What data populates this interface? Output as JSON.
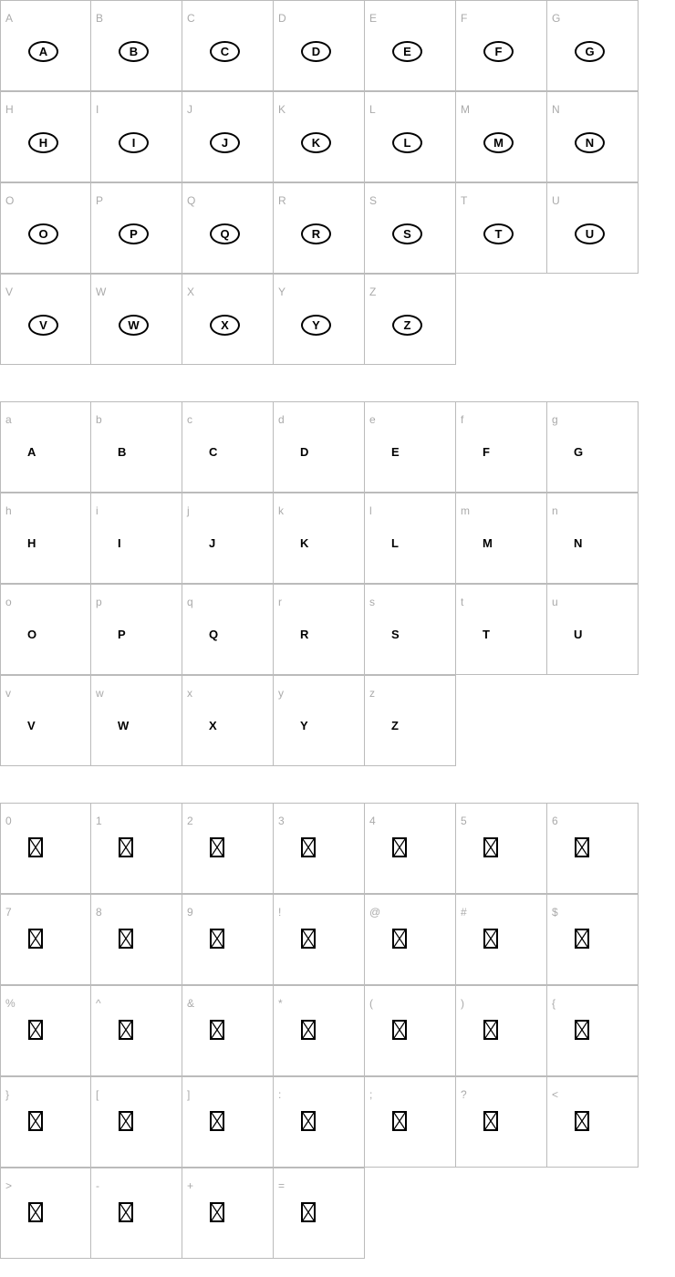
{
  "sections": [
    {
      "style": "oval",
      "cells": [
        {
          "label": "A",
          "glyph": "A"
        },
        {
          "label": "B",
          "glyph": "B"
        },
        {
          "label": "C",
          "glyph": "C"
        },
        {
          "label": "D",
          "glyph": "D"
        },
        {
          "label": "E",
          "glyph": "E"
        },
        {
          "label": "F",
          "glyph": "F"
        },
        {
          "label": "G",
          "glyph": "G"
        },
        {
          "label": "H",
          "glyph": "H"
        },
        {
          "label": "I",
          "glyph": "I"
        },
        {
          "label": "J",
          "glyph": "J"
        },
        {
          "label": "K",
          "glyph": "K"
        },
        {
          "label": "L",
          "glyph": "L"
        },
        {
          "label": "M",
          "glyph": "M"
        },
        {
          "label": "N",
          "glyph": "N"
        },
        {
          "label": "O",
          "glyph": "O"
        },
        {
          "label": "P",
          "glyph": "P"
        },
        {
          "label": "Q",
          "glyph": "Q"
        },
        {
          "label": "R",
          "glyph": "R"
        },
        {
          "label": "S",
          "glyph": "S"
        },
        {
          "label": "T",
          "glyph": "T"
        },
        {
          "label": "U",
          "glyph": "U"
        },
        {
          "label": "V",
          "glyph": "V"
        },
        {
          "label": "W",
          "glyph": "W"
        },
        {
          "label": "X",
          "glyph": "X"
        },
        {
          "label": "Y",
          "glyph": "Y"
        },
        {
          "label": "Z",
          "glyph": "Z"
        }
      ]
    },
    {
      "style": "plain",
      "cells": [
        {
          "label": "a",
          "glyph": "A"
        },
        {
          "label": "b",
          "glyph": "B"
        },
        {
          "label": "c",
          "glyph": "C"
        },
        {
          "label": "d",
          "glyph": "D"
        },
        {
          "label": "e",
          "glyph": "E"
        },
        {
          "label": "f",
          "glyph": "F"
        },
        {
          "label": "g",
          "glyph": "G"
        },
        {
          "label": "h",
          "glyph": "H"
        },
        {
          "label": "i",
          "glyph": "I"
        },
        {
          "label": "j",
          "glyph": "J"
        },
        {
          "label": "k",
          "glyph": "K"
        },
        {
          "label": "l",
          "glyph": "L"
        },
        {
          "label": "m",
          "glyph": "M"
        },
        {
          "label": "n",
          "glyph": "N"
        },
        {
          "label": "o",
          "glyph": "O"
        },
        {
          "label": "p",
          "glyph": "P"
        },
        {
          "label": "q",
          "glyph": "Q"
        },
        {
          "label": "r",
          "glyph": "R"
        },
        {
          "label": "s",
          "glyph": "S"
        },
        {
          "label": "t",
          "glyph": "T"
        },
        {
          "label": "u",
          "glyph": "U"
        },
        {
          "label": "v",
          "glyph": "V"
        },
        {
          "label": "w",
          "glyph": "W"
        },
        {
          "label": "x",
          "glyph": "X"
        },
        {
          "label": "y",
          "glyph": "Y"
        },
        {
          "label": "z",
          "glyph": "Z"
        }
      ]
    },
    {
      "style": "missing-glyph",
      "cells": [
        {
          "label": "0"
        },
        {
          "label": "1"
        },
        {
          "label": "2"
        },
        {
          "label": "3"
        },
        {
          "label": "4"
        },
        {
          "label": "5"
        },
        {
          "label": "6"
        },
        {
          "label": "7"
        },
        {
          "label": "8"
        },
        {
          "label": "9"
        },
        {
          "label": "!"
        },
        {
          "label": "@"
        },
        {
          "label": "#"
        },
        {
          "label": "$"
        },
        {
          "label": "%"
        },
        {
          "label": "^"
        },
        {
          "label": "&"
        },
        {
          "label": "*"
        },
        {
          "label": "("
        },
        {
          "label": ")"
        },
        {
          "label": "{"
        },
        {
          "label": "}"
        },
        {
          "label": "["
        },
        {
          "label": "]"
        },
        {
          "label": ":"
        },
        {
          "label": ";"
        },
        {
          "label": "?"
        },
        {
          "label": "<"
        },
        {
          "label": ">"
        },
        {
          "label": "-"
        },
        {
          "label": "+"
        },
        {
          "label": "="
        }
      ]
    }
  ],
  "colors": {
    "grid": "#bbbbbb",
    "label": "#aaaaaa",
    "glyph": "#000000"
  }
}
